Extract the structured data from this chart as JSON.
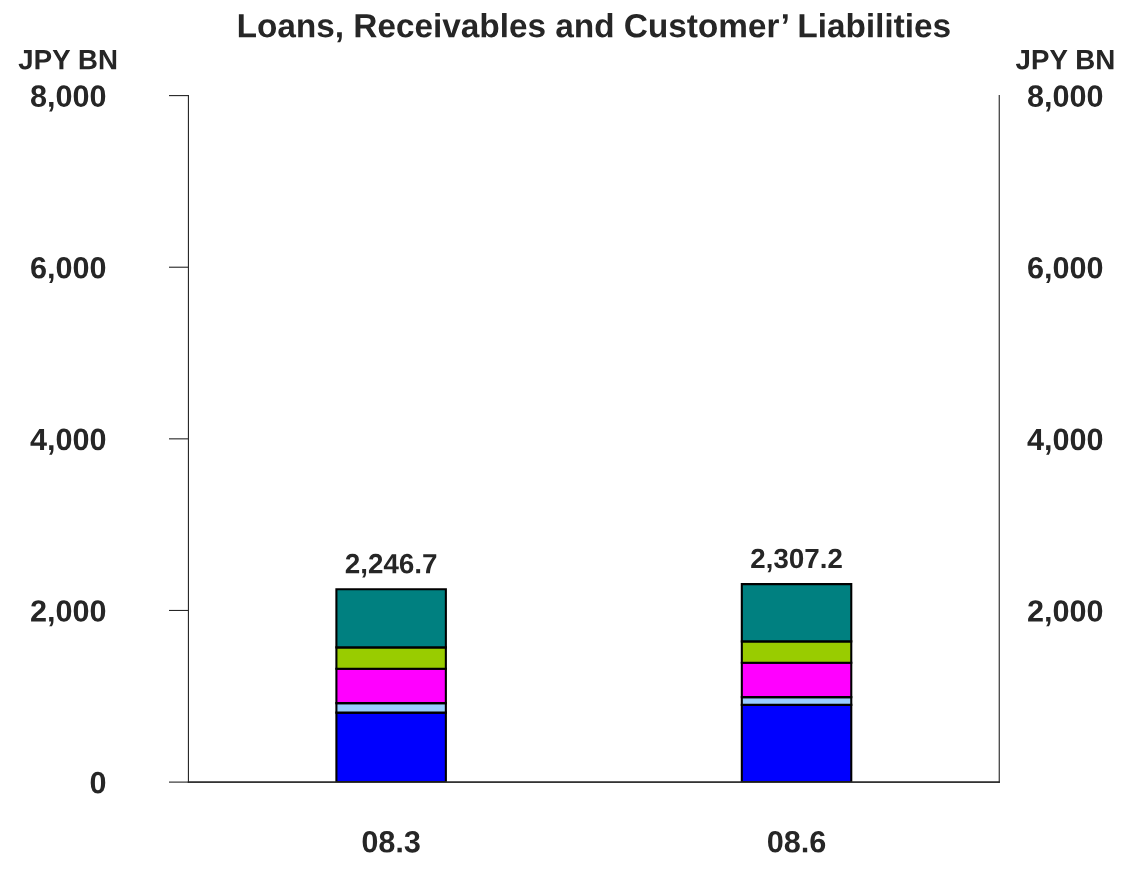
{
  "chart_data": {
    "type": "bar",
    "title": "Loans, Receivables and Customer’ Liabilities",
    "ylabel": "JPY BN",
    "y2label": "JPY BN",
    "categories": [
      "08.3",
      "08.6"
    ],
    "stacked": true,
    "series": [
      {
        "color": "#0000ff",
        "values": [
          810,
          900
        ]
      },
      {
        "color": "#99ccff",
        "values": [
          110,
          90
        ]
      },
      {
        "color": "#ff00ff",
        "values": [
          400,
          400
        ]
      },
      {
        "color": "#99cc00",
        "values": [
          250,
          250
        ]
      },
      {
        "color": "#008080",
        "values": [
          676.7,
          667.2
        ]
      }
    ],
    "totals": [
      "2,246.7",
      "2,307.2"
    ],
    "ylim": [
      0,
      8000
    ],
    "yticks": [
      {
        "value": 0,
        "label": "0"
      },
      {
        "value": 2000,
        "label": "2,000"
      },
      {
        "value": 4000,
        "label": "4,000"
      },
      {
        "value": 6000,
        "label": "6,000"
      },
      {
        "value": 8000,
        "label": "8,000"
      }
    ],
    "y2lim": [
      0,
      8000
    ],
    "y2ticks": [
      {
        "value": 2000,
        "label": "2,000"
      },
      {
        "value": 4000,
        "label": "4,000"
      },
      {
        "value": 6000,
        "label": "6,000"
      },
      {
        "value": 8000,
        "label": "8,000"
      }
    ],
    "grid": false,
    "legend": false
  }
}
